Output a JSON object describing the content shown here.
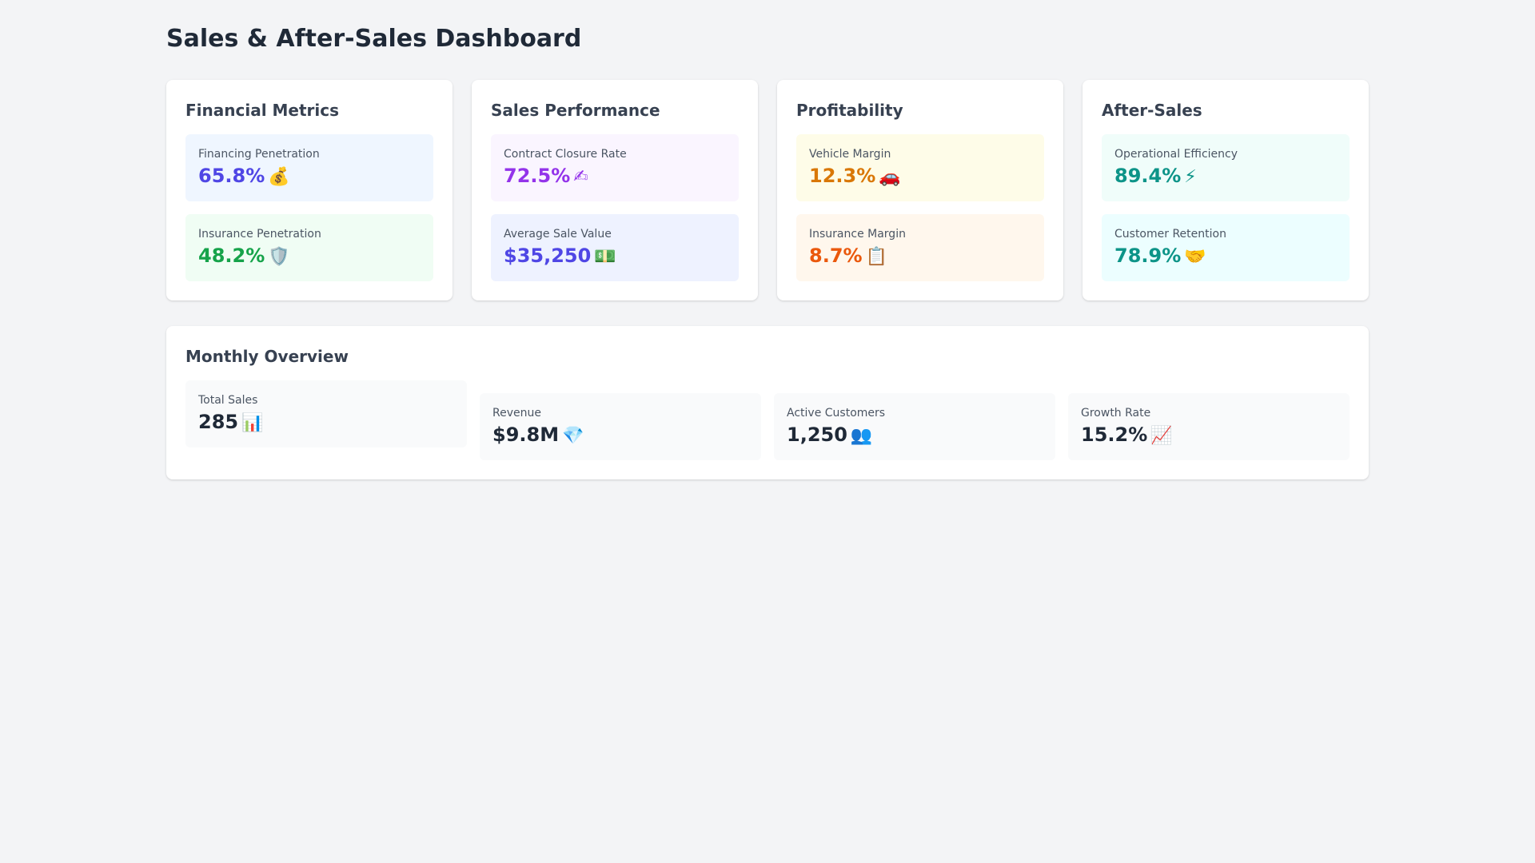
{
  "page": {
    "title": "Sales & After-Sales Dashboard"
  },
  "cards": [
    {
      "title": "Financial Metrics",
      "metrics": [
        {
          "label": "Financing Penetration",
          "value": "65.8%",
          "icon": "💰",
          "icon_name": "money-bag-icon",
          "color": "#4f46e5",
          "bg": "#eff6ff"
        },
        {
          "label": "Insurance Penetration",
          "value": "48.2%",
          "icon": "🛡️",
          "icon_name": "shield-icon",
          "color": "#16a34a",
          "bg": "#f0fdf4"
        }
      ]
    },
    {
      "title": "Sales Performance",
      "metrics": [
        {
          "label": "Contract Closure Rate",
          "value": "72.5%",
          "icon": "✍",
          "icon_name": "writing-hand-icon",
          "color": "#9333ea",
          "bg": "#faf5ff"
        },
        {
          "label": "Average Sale Value",
          "value": "$35,250",
          "icon": "💵",
          "icon_name": "dollar-icon",
          "color": "#4f46e5",
          "bg": "#eef2ff"
        }
      ]
    },
    {
      "title": "Profitability",
      "metrics": [
        {
          "label": "Vehicle Margin",
          "value": "12.3%",
          "icon": "🚗",
          "icon_name": "car-icon",
          "color": "#d97706",
          "bg": "#fefce8"
        },
        {
          "label": "Insurance Margin",
          "value": "8.7%",
          "icon": "📋",
          "icon_name": "clipboard-icon",
          "color": "#ea580c",
          "bg": "#fff7ed"
        }
      ]
    },
    {
      "title": "After-Sales",
      "metrics": [
        {
          "label": "Operational Efficiency",
          "value": "89.4%",
          "icon": "⚡",
          "icon_name": "lightning-icon",
          "color": "#0d9488",
          "bg": "#f0fdfa"
        },
        {
          "label": "Customer Retention",
          "value": "78.9%",
          "icon": "🤝",
          "icon_name": "handshake-icon",
          "color": "#0d9488",
          "bg": "#ecfeff"
        }
      ]
    }
  ],
  "overview": {
    "title": "Monthly Overview",
    "metrics": [
      {
        "label": "Total Sales",
        "value": "285",
        "icon": "📊",
        "icon_name": "bar-chart-icon"
      },
      {
        "label": "Revenue",
        "value": "$9.8M",
        "icon": "💎",
        "icon_name": "gem-icon"
      },
      {
        "label": "Active Customers",
        "value": "1,250",
        "icon": "👥",
        "icon_name": "users-icon"
      },
      {
        "label": "Growth Rate",
        "value": "15.2%",
        "icon": "📈",
        "icon_name": "trending-up-icon"
      }
    ]
  }
}
